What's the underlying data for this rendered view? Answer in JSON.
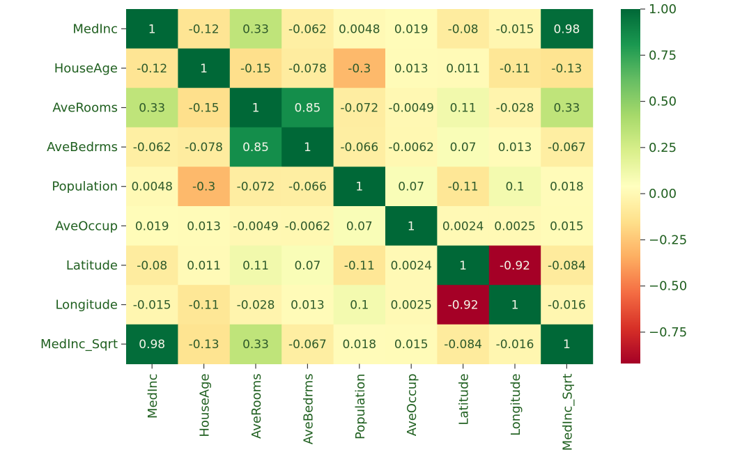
{
  "chart_data": {
    "type": "heatmap",
    "title": "",
    "xlabel": "",
    "ylabel": "",
    "rows": [
      "MedInc",
      "HouseAge",
      "AveRooms",
      "AveBedrms",
      "Population",
      "AveOccup",
      "Latitude",
      "Longitude",
      "MedInc_Sqrt"
    ],
    "columns": [
      "MedInc",
      "HouseAge",
      "AveRooms",
      "AveBedrms",
      "Population",
      "AveOccup",
      "Latitude",
      "Longitude",
      "MedInc_Sqrt"
    ],
    "values": [
      [
        1,
        -0.12,
        0.33,
        -0.062,
        0.0048,
        0.019,
        -0.08,
        -0.015,
        0.98
      ],
      [
        -0.12,
        1,
        -0.15,
        -0.078,
        -0.3,
        0.013,
        0.011,
        -0.11,
        -0.13
      ],
      [
        0.33,
        -0.15,
        1,
        0.85,
        -0.072,
        -0.0049,
        0.11,
        -0.028,
        0.33
      ],
      [
        -0.062,
        -0.078,
        0.85,
        1,
        -0.066,
        -0.0062,
        0.07,
        0.013,
        -0.067
      ],
      [
        0.0048,
        -0.3,
        -0.072,
        -0.066,
        1,
        0.07,
        -0.11,
        0.1,
        0.018
      ],
      [
        0.019,
        0.013,
        -0.0049,
        -0.0062,
        0.07,
        1,
        0.0024,
        0.0025,
        0.015
      ],
      [
        -0.08,
        0.011,
        0.11,
        0.07,
        -0.11,
        0.0024,
        1,
        -0.92,
        -0.084
      ],
      [
        -0.015,
        -0.11,
        -0.028,
        0.013,
        0.1,
        0.0025,
        -0.92,
        1,
        -0.016
      ],
      [
        0.98,
        -0.13,
        0.33,
        -0.067,
        0.018,
        0.015,
        -0.084,
        -0.016,
        1
      ]
    ],
    "annotations": [
      [
        "1",
        "-0.12",
        "0.33",
        "-0.062",
        "0.0048",
        "0.019",
        "-0.08",
        "-0.015",
        "0.98"
      ],
      [
        "-0.12",
        "1",
        "-0.15",
        "-0.078",
        "-0.3",
        "0.013",
        "0.011",
        "-0.11",
        "-0.13"
      ],
      [
        "0.33",
        "-0.15",
        "1",
        "0.85",
        "-0.072",
        "-0.0049",
        "0.11",
        "-0.028",
        "0.33"
      ],
      [
        "-0.062",
        "-0.078",
        "0.85",
        "1",
        "-0.066",
        "-0.0062",
        "0.07",
        "0.013",
        "-0.067"
      ],
      [
        "0.0048",
        "-0.3",
        "-0.072",
        "-0.066",
        "1",
        "0.07",
        "-0.11",
        "0.1",
        "0.018"
      ],
      [
        "0.019",
        "0.013",
        "-0.0049",
        "-0.0062",
        "0.07",
        "1",
        "0.0024",
        "0.0025",
        "0.015"
      ],
      [
        "-0.08",
        "0.011",
        "0.11",
        "0.07",
        "-0.11",
        "0.0024",
        "1",
        "-0.92",
        "-0.084"
      ],
      [
        "-0.015",
        "-0.11",
        "-0.028",
        "0.013",
        "0.1",
        "0.0025",
        "-0.92",
        "1",
        "-0.016"
      ],
      [
        "0.98",
        "-0.13",
        "0.33",
        "-0.067",
        "0.018",
        "0.015",
        "-0.084",
        "-0.016",
        "1"
      ]
    ],
    "colormap": "RdYlGn",
    "vmin": -0.92,
    "vmax": 1,
    "colorbar": {
      "ticks": [
        1.0,
        0.75,
        0.5,
        0.25,
        0.0,
        -0.25,
        -0.5,
        -0.75
      ],
      "tick_labels": [
        "1.00",
        "0.75",
        "0.50",
        "0.25",
        "0.00",
        "−0.25",
        "−0.50",
        "−0.75"
      ]
    },
    "legend_position": "right",
    "grid": false
  }
}
